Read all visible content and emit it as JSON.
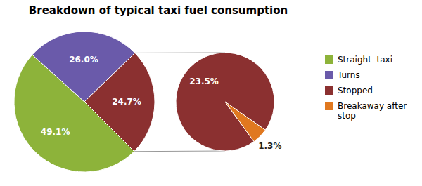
{
  "chart_data": [
    {
      "type": "pie",
      "title": "Breakdown of typical taxi fuel consumption",
      "categories": [
        "Straight  taxi",
        "Turns",
        "Stopped"
      ],
      "values": [
        49.1,
        26.0,
        24.7
      ],
      "value_labels": [
        "49.1%",
        "26.0%",
        "24.7%"
      ],
      "colors": [
        "#8db33a",
        "#6a5aaa",
        "#8b3030"
      ],
      "data_labels": true,
      "legend": "right"
    },
    {
      "type": "pie",
      "categories": [
        "Stopped",
        "Breakaway after\nstop"
      ],
      "values": [
        23.5,
        1.3
      ],
      "value_labels": [
        "23.5%",
        "1.3%"
      ],
      "colors": [
        "#8b3030",
        "#e07820"
      ],
      "data_labels": true,
      "legend": "right"
    }
  ]
}
